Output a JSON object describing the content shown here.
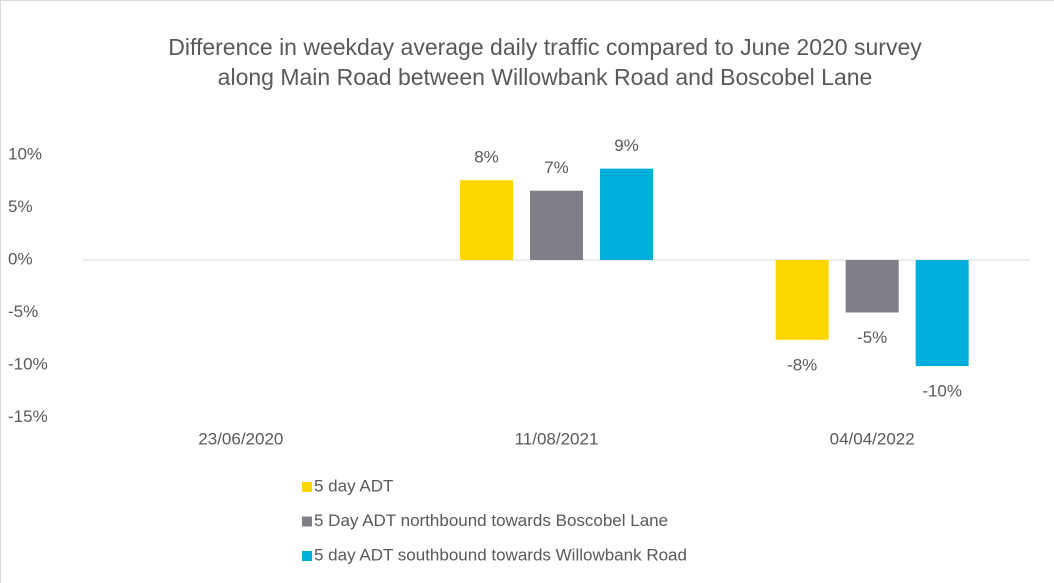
{
  "chart_data": {
    "type": "bar",
    "title": "Difference in weekday average daily traffic compared to June 2020 survey along Main Road between Willowbank Road and Boscobel Lane",
    "categories": [
      "23/06/2020",
      "11/08/2021",
      "04/04/2022"
    ],
    "series": [
      {
        "name": "5 day ADT",
        "color": "#ffd700",
        "values": [
          null,
          7.6,
          -7.6
        ],
        "value_labels": [
          null,
          "8%",
          "-8%"
        ]
      },
      {
        "name": "5 Day ADT northbound towards Boscobel Lane",
        "color": "#7f7f88",
        "values": [
          null,
          6.6,
          -5.0
        ],
        "value_labels": [
          null,
          "7%",
          "-5%"
        ]
      },
      {
        "name": "5 day ADT southbound towards Willowbank Road",
        "color": "#00aedb",
        "values": [
          null,
          8.7,
          -10.1
        ],
        "value_labels": [
          null,
          "9%",
          "-10%"
        ]
      }
    ],
    "ylim": [
      -15,
      10
    ],
    "yticks": [
      {
        "value": -15,
        "label": "-15%"
      },
      {
        "value": -10,
        "label": "-10%"
      },
      {
        "value": -5,
        "label": "-5%"
      },
      {
        "value": 0,
        "label": "0%"
      },
      {
        "value": 5,
        "label": "5%"
      },
      {
        "value": 10,
        "label": "10%"
      }
    ],
    "legend": "bottom"
  }
}
